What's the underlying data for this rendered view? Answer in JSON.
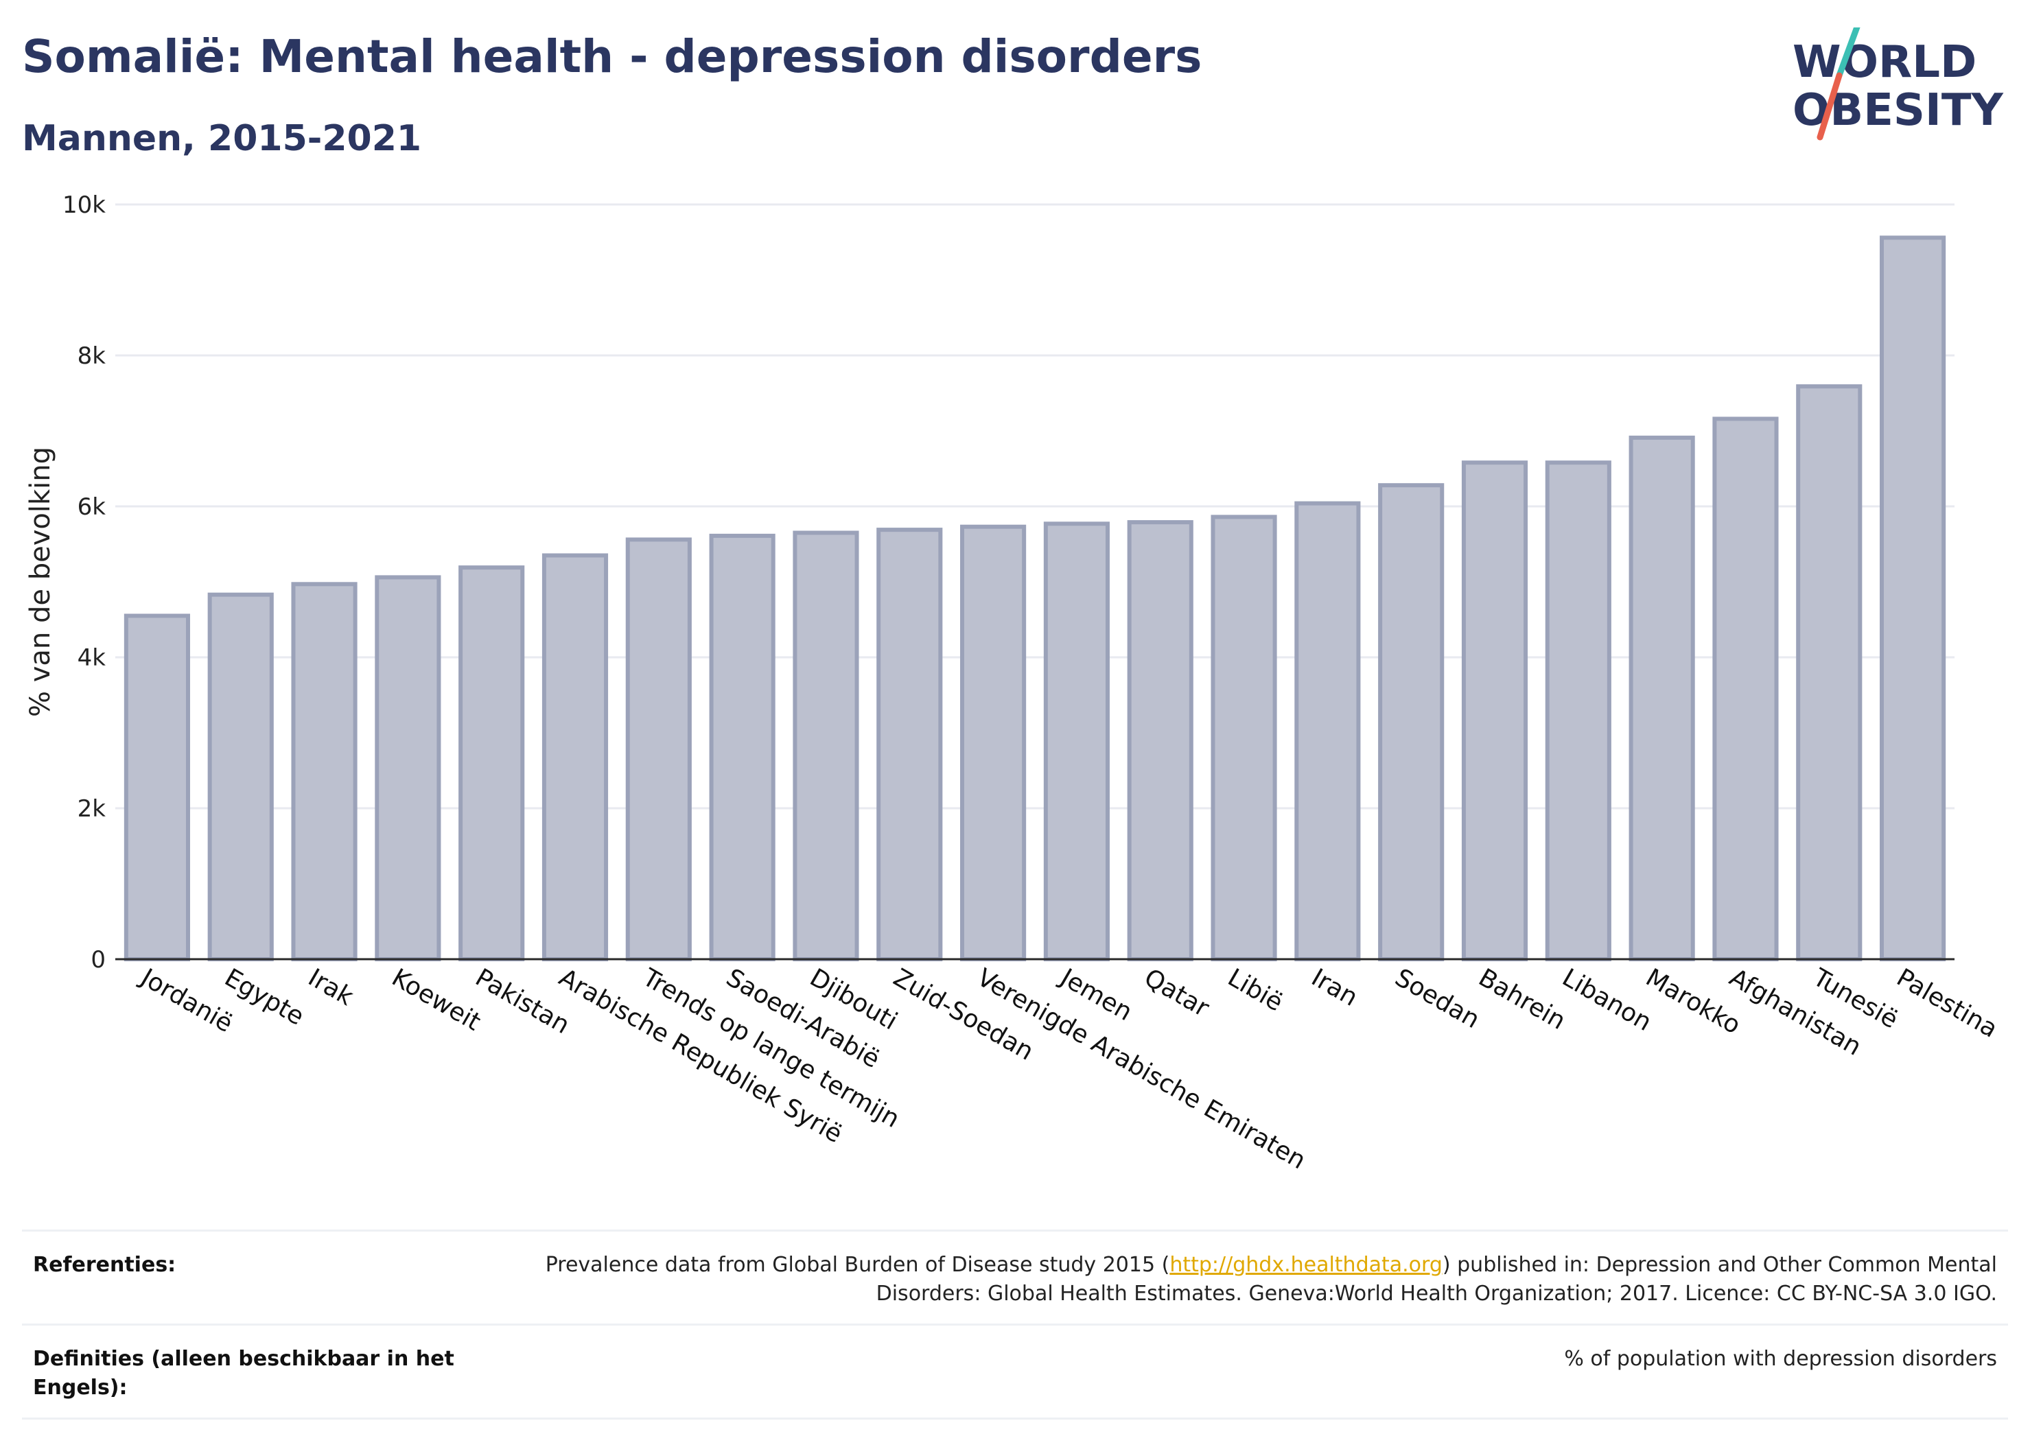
{
  "header": {
    "title": "Somalië: Mental health - depression disorders",
    "subtitle": "Mannen, 2015-2021"
  },
  "logo": {
    "line1": "WORLD",
    "line2": "OBESITY",
    "icon": "world-obesity-logo"
  },
  "colors": {
    "title": "#2b3661",
    "bar_fill": "#bcc0cf",
    "bar_stroke": "#9ba2b9",
    "axis": "#2a2a2a",
    "grid": "#e8eaf0",
    "link": "#e0a800",
    "logo_teal": "#3cbfb4",
    "logo_red": "#e8604c"
  },
  "chart_data": {
    "type": "bar",
    "title": "Somalië: Mental health - depression disorders",
    "subtitle": "Mannen, 2015-2021",
    "ylabel": "% van de bevolking",
    "xlabel": "",
    "ylim": [
      0,
      10000
    ],
    "yticks": [
      0,
      2000,
      4000,
      6000,
      8000,
      10000
    ],
    "ytick_labels": [
      "0",
      "2k",
      "4k",
      "6k",
      "8k",
      "10k"
    ],
    "grid": true,
    "categories": [
      "Jordanië",
      "Egypte",
      "Irak",
      "Koeweit",
      "Pakistan",
      "Arabische Republiek Syrië",
      "Trends op lange termijn",
      "Saoedi-Arabië",
      "Djibouti",
      "Zuid-Soedan",
      "Verenigde Arabische Emiraten",
      "Jemen",
      "Qatar",
      "Libië",
      "Iran",
      "Soedan",
      "Bahrein",
      "Libanon",
      "Marokko",
      "Afghanistan",
      "Tunesië",
      "Palestina"
    ],
    "values": [
      4550,
      4830,
      4970,
      5060,
      5190,
      5350,
      5560,
      5610,
      5650,
      5690,
      5730,
      5770,
      5790,
      5860,
      6040,
      6280,
      6580,
      6580,
      6910,
      7160,
      7590,
      9560
    ]
  },
  "footer": {
    "references_label": "Referenties:",
    "references_text_before": "Prevalence data from Global Burden of Disease study 2015 (",
    "references_link": "http://ghdx.healthdata.org",
    "references_text_after": ") published in: Depression and Other Common Mental Disorders: Global Health Estimates. Geneva:World Health Organization; 2017. Licence: CC BY-NC-SA 3.0 IGO.",
    "definitions_label": "Definities (alleen beschikbaar in het Engels):",
    "definitions_text": "% of population with depression disorders"
  }
}
